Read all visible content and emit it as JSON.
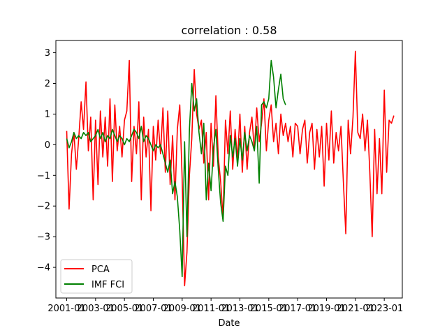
{
  "chart_data": {
    "type": "line",
    "title": "correlation : 0.58",
    "xlabel": "Date",
    "ylabel": "",
    "xlim": [
      "2000-04-01",
      "2024-04-01"
    ],
    "ylim": [
      -5.0,
      3.4
    ],
    "x_ticks": [
      "2001-01",
      "2003-01",
      "2005-01",
      "2007-01",
      "2009-01",
      "2011-01",
      "2013-01",
      "2015-01",
      "2017-01",
      "2019-01",
      "2021-01",
      "2023-01"
    ],
    "y_ticks": [
      -4,
      -3,
      -2,
      -1,
      0,
      1,
      2,
      3
    ],
    "grid": false,
    "legend_position": "lower left",
    "series": [
      {
        "name": "PCA",
        "color": "#ff0000",
        "points": [
          [
            "2001-01",
            0.45
          ],
          [
            "2001-03",
            -2.1
          ],
          [
            "2001-05",
            -0.3
          ],
          [
            "2001-07",
            0.4
          ],
          [
            "2001-09",
            -0.8
          ],
          [
            "2001-11",
            0.2
          ],
          [
            "2002-01",
            1.4
          ],
          [
            "2002-03",
            0.5
          ],
          [
            "2002-05",
            2.05
          ],
          [
            "2002-07",
            -0.2
          ],
          [
            "2002-09",
            0.9
          ],
          [
            "2002-11",
            -1.8
          ],
          [
            "2003-01",
            0.8
          ],
          [
            "2003-03",
            -1.3
          ],
          [
            "2003-05",
            1.1
          ],
          [
            "2003-07",
            -0.4
          ],
          [
            "2003-09",
            0.9
          ],
          [
            "2003-11",
            -0.7
          ],
          [
            "2004-01",
            1.5
          ],
          [
            "2004-03",
            -1.2
          ],
          [
            "2004-05",
            1.3
          ],
          [
            "2004-07",
            -0.2
          ],
          [
            "2004-09",
            0.6
          ],
          [
            "2004-11",
            -0.4
          ],
          [
            "2005-01",
            0.8
          ],
          [
            "2005-03",
            1.1
          ],
          [
            "2005-05",
            2.75
          ],
          [
            "2005-07",
            -1.2
          ],
          [
            "2005-09",
            0.6
          ],
          [
            "2005-11",
            -0.3
          ],
          [
            "2006-01",
            1.4
          ],
          [
            "2006-03",
            -1.8
          ],
          [
            "2006-05",
            0.9
          ],
          [
            "2006-07",
            -0.4
          ],
          [
            "2006-09",
            0.5
          ],
          [
            "2006-11",
            -2.15
          ],
          [
            "2007-01",
            0.6
          ],
          [
            "2007-03",
            -0.5
          ],
          [
            "2007-05",
            0.8
          ],
          [
            "2007-07",
            -0.3
          ],
          [
            "2007-09",
            1.2
          ],
          [
            "2007-11",
            -0.9
          ],
          [
            "2008-01",
            1.1
          ],
          [
            "2008-03",
            -1.3
          ],
          [
            "2008-05",
            0.3
          ],
          [
            "2008-07",
            -1.8
          ],
          [
            "2008-09",
            0.5
          ],
          [
            "2008-11",
            1.3
          ],
          [
            "2009-01",
            -1.1
          ],
          [
            "2009-03",
            -4.6
          ],
          [
            "2009-05",
            -3.5
          ],
          [
            "2009-07",
            -1.0
          ],
          [
            "2009-09",
            0.2
          ],
          [
            "2009-11",
            2.45
          ],
          [
            "2010-01",
            1.0
          ],
          [
            "2010-03",
            0.5
          ],
          [
            "2010-05",
            0.8
          ],
          [
            "2010-07",
            -0.6
          ],
          [
            "2010-09",
            0.4
          ],
          [
            "2010-11",
            -1.8
          ],
          [
            "2011-01",
            0.7
          ],
          [
            "2011-03",
            -0.7
          ],
          [
            "2011-05",
            1.6
          ],
          [
            "2011-07",
            -0.4
          ],
          [
            "2011-09",
            -1.2
          ],
          [
            "2011-11",
            -2.4
          ],
          [
            "2012-01",
            0.8
          ],
          [
            "2012-03",
            -0.3
          ],
          [
            "2012-05",
            1.1
          ],
          [
            "2012-07",
            -0.8
          ],
          [
            "2012-09",
            0.5
          ],
          [
            "2012-11",
            -0.5
          ],
          [
            "2013-01",
            1.0
          ],
          [
            "2013-03",
            -0.9
          ],
          [
            "2013-05",
            0.6
          ],
          [
            "2013-07",
            -0.8
          ],
          [
            "2013-09",
            0.4
          ],
          [
            "2013-11",
            0.9
          ],
          [
            "2014-01",
            -0.2
          ],
          [
            "2014-03",
            1.2
          ],
          [
            "2014-05",
            0.1
          ],
          [
            "2014-07",
            0.7
          ],
          [
            "2014-09",
            1.5
          ],
          [
            "2014-11",
            -0.2
          ],
          [
            "2015-01",
            0.8
          ],
          [
            "2015-03",
            1.3
          ],
          [
            "2015-05",
            0.1
          ],
          [
            "2015-07",
            0.7
          ],
          [
            "2015-09",
            -0.3
          ],
          [
            "2015-11",
            1.0
          ],
          [
            "2016-01",
            0.3
          ],
          [
            "2016-03",
            0.7
          ],
          [
            "2016-05",
            0.1
          ],
          [
            "2016-07",
            0.6
          ],
          [
            "2016-09",
            -0.4
          ],
          [
            "2016-11",
            0.7
          ],
          [
            "2017-01",
            0.6
          ],
          [
            "2017-03",
            -0.3
          ],
          [
            "2017-05",
            0.5
          ],
          [
            "2017-07",
            0.8
          ],
          [
            "2017-09",
            -0.6
          ],
          [
            "2017-11",
            0.4
          ],
          [
            "2018-01",
            0.7
          ],
          [
            "2018-03",
            -0.8
          ],
          [
            "2018-05",
            0.5
          ],
          [
            "2018-07",
            -0.4
          ],
          [
            "2018-09",
            0.6
          ],
          [
            "2018-11",
            -1.35
          ],
          [
            "2019-01",
            0.7
          ],
          [
            "2019-03",
            -0.5
          ],
          [
            "2019-05",
            1.1
          ],
          [
            "2019-07",
            -0.6
          ],
          [
            "2019-09",
            0.4
          ],
          [
            "2019-11",
            -0.2
          ],
          [
            "2020-01",
            0.6
          ],
          [
            "2020-03",
            -1.2
          ],
          [
            "2020-05",
            -2.9
          ],
          [
            "2020-07",
            0.8
          ],
          [
            "2020-09",
            -0.3
          ],
          [
            "2020-11",
            0.9
          ],
          [
            "2021-01",
            3.05
          ],
          [
            "2021-03",
            0.4
          ],
          [
            "2021-05",
            0.2
          ],
          [
            "2021-07",
            1.0
          ],
          [
            "2021-09",
            -0.2
          ],
          [
            "2021-11",
            0.8
          ],
          [
            "2022-01",
            -0.9
          ],
          [
            "2022-03",
            -3.0
          ],
          [
            "2022-05",
            0.5
          ],
          [
            "2022-07",
            -1.6
          ],
          [
            "2022-09",
            0.2
          ],
          [
            "2022-11",
            -1.6
          ],
          [
            "2023-01",
            1.78
          ],
          [
            "2023-03",
            -0.9
          ],
          [
            "2023-05",
            0.8
          ],
          [
            "2023-07",
            0.7
          ],
          [
            "2023-09",
            0.95
          ]
        ]
      },
      {
        "name": "IMF FCI",
        "color": "#008000",
        "points": [
          [
            "2001-01",
            0.2
          ],
          [
            "2001-03",
            -0.1
          ],
          [
            "2001-05",
            0.1
          ],
          [
            "2001-07",
            0.4
          ],
          [
            "2001-09",
            0.2
          ],
          [
            "2001-11",
            0.3
          ],
          [
            "2002-01",
            0.2
          ],
          [
            "2002-03",
            0.4
          ],
          [
            "2002-05",
            0.3
          ],
          [
            "2002-07",
            0.4
          ],
          [
            "2002-09",
            0.1
          ],
          [
            "2002-11",
            0.2
          ],
          [
            "2003-01",
            0.3
          ],
          [
            "2003-03",
            0.5
          ],
          [
            "2003-05",
            0.2
          ],
          [
            "2003-07",
            0.4
          ],
          [
            "2003-09",
            0.1
          ],
          [
            "2003-11",
            0.3
          ],
          [
            "2004-01",
            0.2
          ],
          [
            "2004-03",
            0.5
          ],
          [
            "2004-05",
            0.3
          ],
          [
            "2004-07",
            0.1
          ],
          [
            "2004-09",
            0.3
          ],
          [
            "2004-11",
            0.2
          ],
          [
            "2005-01",
            0.0
          ],
          [
            "2005-03",
            0.2
          ],
          [
            "2005-05",
            0.1
          ],
          [
            "2005-07",
            0.3
          ],
          [
            "2005-09",
            0.5
          ],
          [
            "2005-11",
            0.4
          ],
          [
            "2006-01",
            0.2
          ],
          [
            "2006-03",
            0.6
          ],
          [
            "2006-05",
            0.1
          ],
          [
            "2006-07",
            0.3
          ],
          [
            "2006-09",
            0.2
          ],
          [
            "2006-11",
            0.0
          ],
          [
            "2007-01",
            -0.2
          ],
          [
            "2007-03",
            0.0
          ],
          [
            "2007-05",
            -0.1
          ],
          [
            "2007-07",
            0.0
          ],
          [
            "2007-09",
            -0.3
          ],
          [
            "2007-11",
            -0.6
          ],
          [
            "2008-01",
            -0.9
          ],
          [
            "2008-03",
            -0.5
          ],
          [
            "2008-05",
            -1.6
          ],
          [
            "2008-07",
            -1.2
          ],
          [
            "2008-09",
            -1.7
          ],
          [
            "2008-11",
            -2.8
          ],
          [
            "2009-01",
            -4.3
          ],
          [
            "2009-03",
            0.1
          ],
          [
            "2009-05",
            -3.0
          ],
          [
            "2009-07",
            0.5
          ],
          [
            "2009-09",
            2.0
          ],
          [
            "2009-11",
            1.1
          ],
          [
            "2010-01",
            1.5
          ],
          [
            "2010-03",
            0.4
          ],
          [
            "2010-05",
            -0.3
          ],
          [
            "2010-07",
            0.7
          ],
          [
            "2010-09",
            -1.8
          ],
          [
            "2010-11",
            -0.6
          ],
          [
            "2011-01",
            -1.5
          ],
          [
            "2011-03",
            -0.1
          ],
          [
            "2011-05",
            0.5
          ],
          [
            "2011-07",
            -0.8
          ],
          [
            "2011-09",
            -1.9
          ],
          [
            "2011-11",
            -2.5
          ],
          [
            "2012-01",
            -0.7
          ],
          [
            "2012-03",
            -1.0
          ],
          [
            "2012-05",
            0.3
          ],
          [
            "2012-07",
            -0.4
          ],
          [
            "2012-09",
            0.2
          ],
          [
            "2012-11",
            -0.7
          ],
          [
            "2013-01",
            0.2
          ],
          [
            "2013-03",
            -0.5
          ],
          [
            "2013-05",
            0.4
          ],
          [
            "2013-07",
            -0.2
          ],
          [
            "2013-09",
            0.3
          ],
          [
            "2013-11",
            0.1
          ],
          [
            "2014-01",
            -0.2
          ],
          [
            "2014-03",
            0.6
          ],
          [
            "2014-05",
            -1.25
          ],
          [
            "2014-07",
            1.3
          ],
          [
            "2014-09",
            1.4
          ],
          [
            "2014-11",
            1.2
          ],
          [
            "2015-01",
            1.5
          ],
          [
            "2015-03",
            2.75
          ],
          [
            "2015-05",
            2.2
          ],
          [
            "2015-07",
            1.2
          ],
          [
            "2015-09",
            1.8
          ],
          [
            "2015-11",
            2.3
          ],
          [
            "2016-01",
            1.5
          ],
          [
            "2016-03",
            1.3
          ]
        ]
      }
    ]
  }
}
